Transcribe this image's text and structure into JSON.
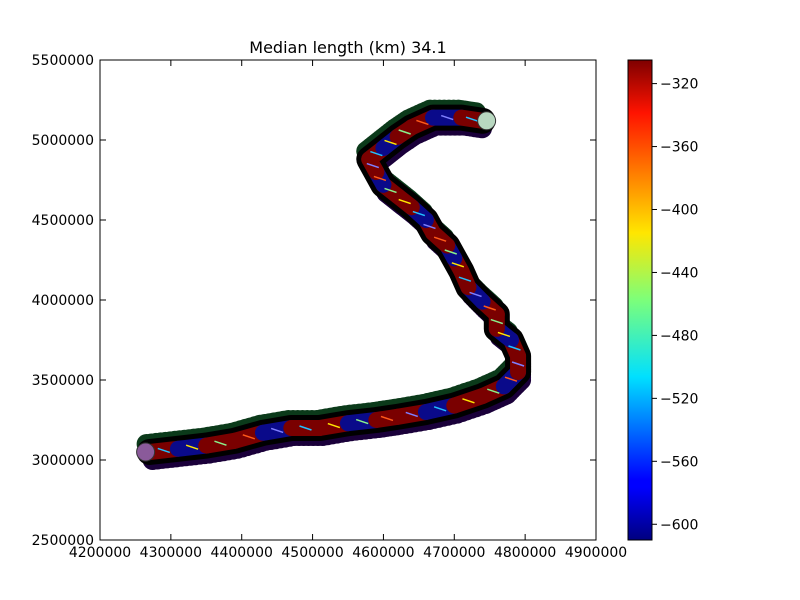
{
  "chart_data": {
    "type": "scatter",
    "title": "Median length (km) 34.1",
    "xlabel": "",
    "ylabel": "",
    "xlim": [
      4200000,
      4900000
    ],
    "ylim": [
      2500000,
      5500000
    ],
    "xticks": [
      "4200000",
      "4300000",
      "4400000",
      "4500000",
      "4600000",
      "4700000",
      "4800000",
      "4900000"
    ],
    "yticks": [
      "2500000",
      "3000000",
      "3500000",
      "4000000",
      "4500000",
      "5000000",
      "5500000"
    ],
    "grid": false,
    "colorbar": {
      "colormap": "jet",
      "range": [
        -610,
        -305
      ],
      "ticks": [
        "−320",
        "−360",
        "−400",
        "−440",
        "−480",
        "−520",
        "−560",
        "−600"
      ],
      "tick_values": [
        -320,
        -360,
        -400,
        -440,
        -480,
        -520,
        -560,
        -600
      ]
    },
    "trace_colors": {
      "outer_bottom": "#1a003a",
      "outer_top": "#0b3a1a",
      "band_red": "#7a0000",
      "band_blue": "#0a0a8a",
      "start_marker": "#8a5a9a",
      "end_marker": "#b8d8c0"
    },
    "trace_path": [
      {
        "x": 4270000,
        "y": 3050000
      },
      {
        "x": 4310000,
        "y": 3070000
      },
      {
        "x": 4350000,
        "y": 3090000
      },
      {
        "x": 4390000,
        "y": 3120000
      },
      {
        "x": 4430000,
        "y": 3170000
      },
      {
        "x": 4470000,
        "y": 3200000
      },
      {
        "x": 4510000,
        "y": 3200000
      },
      {
        "x": 4550000,
        "y": 3230000
      },
      {
        "x": 4590000,
        "y": 3250000
      },
      {
        "x": 4620000,
        "y": 3270000
      },
      {
        "x": 4660000,
        "y": 3300000
      },
      {
        "x": 4700000,
        "y": 3340000
      },
      {
        "x": 4740000,
        "y": 3400000
      },
      {
        "x": 4770000,
        "y": 3460000
      },
      {
        "x": 4790000,
        "y": 3550000
      },
      {
        "x": 4790000,
        "y": 3650000
      },
      {
        "x": 4780000,
        "y": 3750000
      },
      {
        "x": 4760000,
        "y": 3820000
      },
      {
        "x": 4760000,
        "y": 3910000
      },
      {
        "x": 4740000,
        "y": 3990000
      },
      {
        "x": 4720000,
        "y": 4080000
      },
      {
        "x": 4710000,
        "y": 4180000
      },
      {
        "x": 4700000,
        "y": 4260000
      },
      {
        "x": 4690000,
        "y": 4340000
      },
      {
        "x": 4670000,
        "y": 4420000
      },
      {
        "x": 4660000,
        "y": 4500000
      },
      {
        "x": 4640000,
        "y": 4580000
      },
      {
        "x": 4620000,
        "y": 4650000
      },
      {
        "x": 4600000,
        "y": 4720000
      },
      {
        "x": 4590000,
        "y": 4800000
      },
      {
        "x": 4580000,
        "y": 4880000
      },
      {
        "x": 4600000,
        "y": 4950000
      },
      {
        "x": 4620000,
        "y": 5020000
      },
      {
        "x": 4640000,
        "y": 5080000
      },
      {
        "x": 4670000,
        "y": 5140000
      },
      {
        "x": 4710000,
        "y": 5140000
      },
      {
        "x": 4740000,
        "y": 5120000
      }
    ]
  }
}
